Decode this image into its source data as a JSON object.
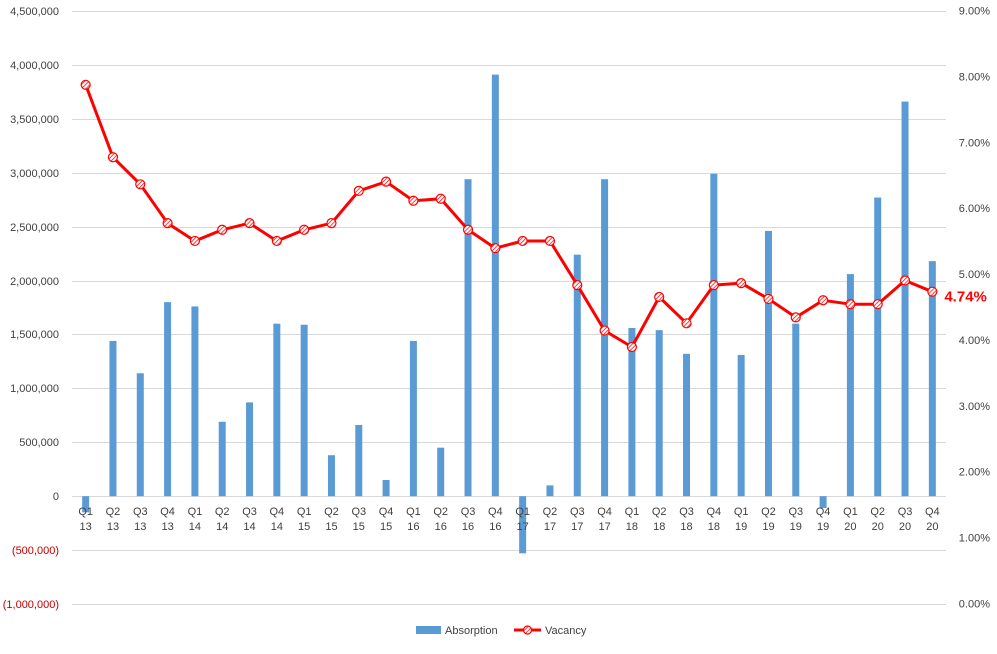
{
  "chart_data": {
    "type": "bar+line",
    "categories": [
      [
        "Q1",
        "13"
      ],
      [
        "Q2",
        "13"
      ],
      [
        "Q3",
        "13"
      ],
      [
        "Q4",
        "13"
      ],
      [
        "Q1",
        "14"
      ],
      [
        "Q2",
        "14"
      ],
      [
        "Q3",
        "14"
      ],
      [
        "Q4",
        "14"
      ],
      [
        "Q1",
        "15"
      ],
      [
        "Q2",
        "15"
      ],
      [
        "Q3",
        "15"
      ],
      [
        "Q4",
        "15"
      ],
      [
        "Q1",
        "16"
      ],
      [
        "Q2",
        "16"
      ],
      [
        "Q3",
        "16"
      ],
      [
        "Q4",
        "16"
      ],
      [
        "Q1",
        "17"
      ],
      [
        "Q2",
        "17"
      ],
      [
        "Q3",
        "17"
      ],
      [
        "Q4",
        "17"
      ],
      [
        "Q1",
        "18"
      ],
      [
        "Q2",
        "18"
      ],
      [
        "Q3",
        "18"
      ],
      [
        "Q4",
        "18"
      ],
      [
        "Q1",
        "19"
      ],
      [
        "Q2",
        "19"
      ],
      [
        "Q3",
        "19"
      ],
      [
        "Q4",
        "19"
      ],
      [
        "Q1",
        "20"
      ],
      [
        "Q2",
        "20"
      ],
      [
        "Q3",
        "20"
      ],
      [
        "Q4",
        "20"
      ]
    ],
    "series": [
      {
        "name": "Absorption",
        "type": "bar",
        "axis": "left",
        "color": "#5B9BD5",
        "values": [
          -150000,
          1440000,
          1140000,
          1800000,
          1760000,
          690000,
          870000,
          1600000,
          1590000,
          380000,
          660000,
          150000,
          1440000,
          450000,
          2940000,
          3910000,
          -530000,
          100000,
          2240000,
          2940000,
          1560000,
          1540000,
          1320000,
          2990000,
          1310000,
          2460000,
          1600000,
          -110000,
          2060000,
          2770000,
          3660000,
          2180000
        ]
      },
      {
        "name": "Vacancy",
        "type": "line",
        "axis": "right",
        "color": "#FF0000",
        "values": [
          7.88,
          6.78,
          6.37,
          5.78,
          5.51,
          5.68,
          5.78,
          5.51,
          5.68,
          5.78,
          6.27,
          6.41,
          6.12,
          6.15,
          5.68,
          5.4,
          5.51,
          5.51,
          4.84,
          4.15,
          3.9,
          4.66,
          4.26,
          4.84,
          4.87,
          4.63,
          4.35,
          4.61,
          4.55,
          4.55,
          4.91,
          4.74
        ]
      }
    ],
    "left_axis": {
      "ylim": [
        -1000000,
        4500000
      ],
      "ticks": [
        4500000,
        4000000,
        3500000,
        3000000,
        2500000,
        2000000,
        1500000,
        1000000,
        500000,
        0,
        -500000,
        -1000000
      ],
      "tick_labels": [
        "4,500,000",
        "4,000,000",
        "3,500,000",
        "3,000,000",
        "2,500,000",
        "2,000,000",
        "1,500,000",
        "1,000,000",
        "500,000",
        "0",
        "(500,000)",
        "(1,000,000)"
      ],
      "negative_label_color": "#C00000"
    },
    "right_axis": {
      "ylim": [
        0,
        9
      ],
      "ticks": [
        9,
        8,
        7,
        6,
        5,
        4,
        3,
        2,
        1,
        0
      ],
      "tick_labels": [
        "9.00%",
        "8.00%",
        "7.00%",
        "6.00%",
        "5.00%",
        "4.00%",
        "3.00%",
        "2.00%",
        "1.00%",
        "0.00%"
      ]
    },
    "annotations": [
      {
        "text": "4.74%",
        "series": "Vacancy",
        "point_index": 31,
        "color": "#FF0000"
      }
    ],
    "grid": true,
    "legend": {
      "position": "bottom",
      "entries": [
        "Absorption",
        "Vacancy"
      ]
    },
    "title": "",
    "xlabel": "",
    "ylabel": ""
  }
}
